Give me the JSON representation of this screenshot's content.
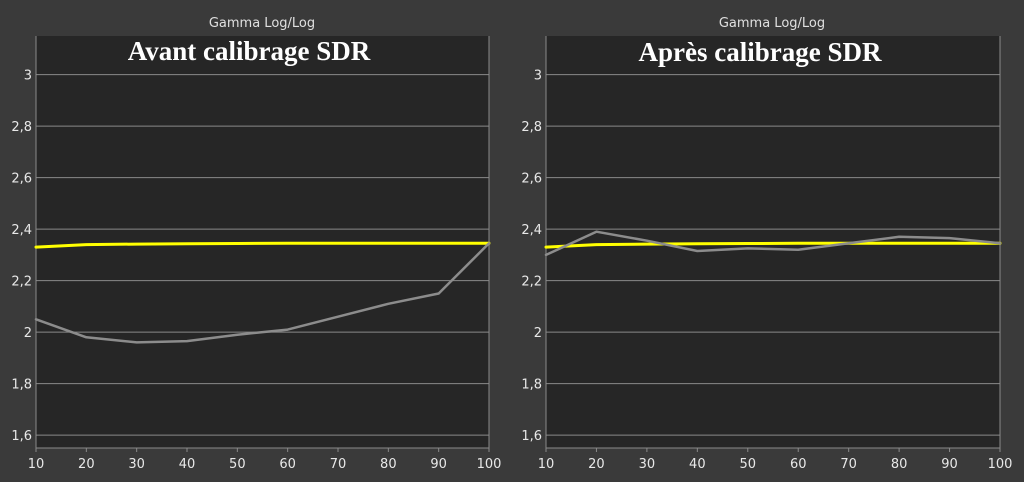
{
  "colors": {
    "background": "#3a3a3a",
    "plot_area": "#262626",
    "grid": "#8a8a8a",
    "target": "#ffff00",
    "measured": "#8c8c8c"
  },
  "chart_data": [
    {
      "type": "line",
      "title": "Gamma Log/Log",
      "overlay_title": "Avant calibrage SDR",
      "xlabel": "",
      "ylabel": "",
      "xlim": [
        10,
        100
      ],
      "ylim": [
        1.55,
        3.15
      ],
      "x_ticks": [
        10,
        20,
        30,
        40,
        50,
        60,
        70,
        80,
        90,
        100
      ],
      "x_tick_labels": [
        "10",
        "20",
        "30",
        "40",
        "50",
        "60",
        "70",
        "80",
        "90",
        "100"
      ],
      "y_ticks": [
        1.6,
        1.8,
        2.0,
        2.2,
        2.4,
        2.6,
        2.8,
        3.0
      ],
      "y_tick_labels": [
        "1,6",
        "1,8",
        "2",
        "2,2",
        "2,4",
        "2,6",
        "2,8",
        "3"
      ],
      "grid": true,
      "series": [
        {
          "role": "target",
          "color": "#ffff00",
          "x": [
            10,
            15,
            20,
            30,
            40,
            50,
            60,
            70,
            80,
            90,
            100
          ],
          "values": [
            2.33,
            2.335,
            2.34,
            2.342,
            2.343,
            2.344,
            2.345,
            2.345,
            2.345,
            2.345,
            2.345
          ]
        },
        {
          "role": "measured",
          "color": "#8c8c8c",
          "x": [
            10,
            20,
            30,
            40,
            50,
            60,
            70,
            80,
            90,
            100
          ],
          "values": [
            2.05,
            1.98,
            1.96,
            1.965,
            1.99,
            2.01,
            2.06,
            2.11,
            2.15,
            2.345
          ]
        }
      ]
    },
    {
      "type": "line",
      "title": "Gamma Log/Log",
      "overlay_title": "Après calibrage SDR",
      "xlabel": "",
      "ylabel": "",
      "xlim": [
        10,
        100
      ],
      "ylim": [
        1.55,
        3.15
      ],
      "x_ticks": [
        10,
        20,
        30,
        40,
        50,
        60,
        70,
        80,
        90,
        100
      ],
      "x_tick_labels": [
        "10",
        "20",
        "30",
        "40",
        "50",
        "60",
        "70",
        "80",
        "90",
        "100"
      ],
      "y_ticks": [
        1.6,
        1.8,
        2.0,
        2.2,
        2.4,
        2.6,
        2.8,
        3.0
      ],
      "y_tick_labels": [
        "1,6",
        "1,8",
        "2",
        "2,2",
        "2,4",
        "2,6",
        "2,8",
        "3"
      ],
      "grid": true,
      "series": [
        {
          "role": "target",
          "color": "#ffff00",
          "x": [
            10,
            15,
            20,
            30,
            40,
            50,
            60,
            70,
            80,
            90,
            100
          ],
          "values": [
            2.33,
            2.335,
            2.34,
            2.342,
            2.343,
            2.344,
            2.345,
            2.345,
            2.345,
            2.345,
            2.345
          ]
        },
        {
          "role": "measured",
          "color": "#8c8c8c",
          "x": [
            10,
            20,
            30,
            40,
            50,
            60,
            70,
            80,
            90,
            100
          ],
          "values": [
            2.3,
            2.39,
            2.355,
            2.315,
            2.325,
            2.32,
            2.345,
            2.37,
            2.365,
            2.345
          ]
        }
      ]
    }
  ]
}
